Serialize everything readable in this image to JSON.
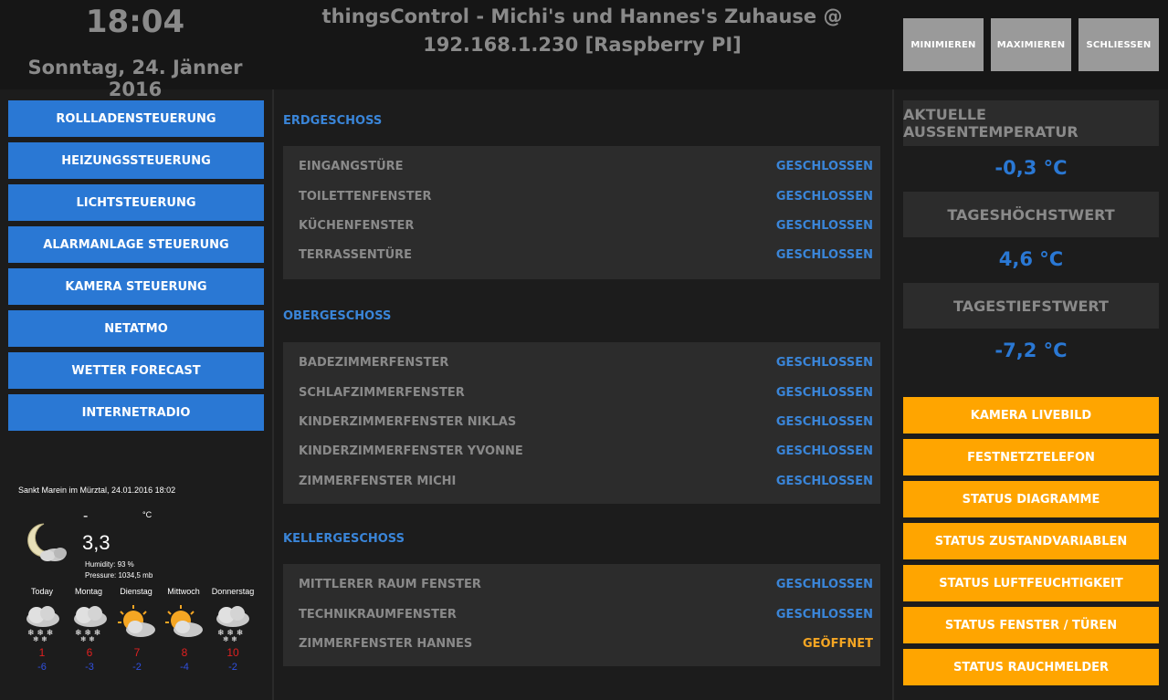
{
  "header": {
    "time": "18:04",
    "date": "Sonntag, 24. Jänner 2016",
    "title_line1": "thingsControl - Michi's und Hannes's Zuhause @",
    "title_line2": "192.168.1.230 [Raspberry PI]",
    "buttons": {
      "minimize": "MINIMIEREN",
      "maximize": "MAXIMIEREN",
      "close": "SCHLIESSEN"
    }
  },
  "nav": [
    "ROLLLADENSTEUERUNG",
    "HEIZUNGSSTEUERUNG",
    "LICHTSTEUERUNG",
    "ALARMANLAGE STEUERUNG",
    "KAMERA STEUERUNG",
    "NETATMO",
    "WETTER FORECAST",
    "INTERNETRADIO"
  ],
  "weather": {
    "location": "Sankt Marein im Mürztal, 24.01.2016 18:02",
    "unit": "°C",
    "dash": "-",
    "current_temp": "3,3",
    "humidity": "Humidity:  93 %",
    "pressure": "Pressure:  1034,5 mb",
    "current_icon": "moon-cloud-icon",
    "forecast": [
      {
        "day": "Today",
        "hi": "1",
        "lo": "-6",
        "icon": "snow-cloud-icon"
      },
      {
        "day": "Montag",
        "hi": "6",
        "lo": "-3",
        "icon": "snow-cloud-icon"
      },
      {
        "day": "Dienstag",
        "hi": "7",
        "lo": "-2",
        "icon": "sun-cloud-icon"
      },
      {
        "day": "Mittwoch",
        "hi": "8",
        "lo": "-4",
        "icon": "sun-cloud-icon"
      },
      {
        "day": "Donnerstag",
        "hi": "10",
        "lo": "-2",
        "icon": "snow-cloud-icon"
      }
    ]
  },
  "sections": {
    "erdgeschoss": {
      "title": "ERDGESCHOSS",
      "rows": [
        {
          "label": "EINGANGSTÜRE",
          "status": "GESCHLOSSEN"
        },
        {
          "label": "TOILETTENFENSTER",
          "status": "GESCHLOSSEN"
        },
        {
          "label": "KÜCHENFENSTER",
          "status": "GESCHLOSSEN"
        },
        {
          "label": "TERRASSENTÜRE",
          "status": "GESCHLOSSEN"
        }
      ]
    },
    "obergeschoss": {
      "title": "OBERGESCHOSS",
      "rows": [
        {
          "label": "BADEZIMMERFENSTER",
          "status": "GESCHLOSSEN"
        },
        {
          "label": "SCHLAFZIMMERFENSTER",
          "status": "GESCHLOSSEN"
        },
        {
          "label": "KINDERZIMMERFENSTER NIKLAS",
          "status": "GESCHLOSSEN"
        },
        {
          "label": "KINDERZIMMERFENSTER YVONNE",
          "status": "GESCHLOSSEN"
        },
        {
          "label": "ZIMMERFENSTER MICHI",
          "status": "GESCHLOSSEN"
        }
      ]
    },
    "kellergeschoss": {
      "title": "KELLERGESCHOSS",
      "rows": [
        {
          "label": "MITTLERER RAUM FENSTER",
          "status": "GESCHLOSSEN"
        },
        {
          "label": "TECHNIKRAUMFENSTER",
          "status": "GESCHLOSSEN"
        },
        {
          "label": "ZIMMERFENSTER HANNES",
          "status": "GEÖFFNET"
        }
      ]
    }
  },
  "temps": {
    "outside_label": "AKTUELLE AUSSENTEMPERATUR",
    "outside_value": "-0,3 °C",
    "max_label": "TAGESHÖCHSTWERT",
    "max_value": "4,6 °C",
    "min_label": "TAGESTIEFSTWERT",
    "min_value": "-7,2 °C"
  },
  "status_buttons": [
    "KAMERA LIVEBILD",
    "FESTNETZTELEFON",
    "STATUS DIAGRAMME",
    "STATUS ZUSTANDVARIABLEN",
    "STATUS LUFTFEUCHTIGKEIT",
    "STATUS FENSTER / TÜREN",
    "STATUS RAUCHMELDER"
  ],
  "colors": {
    "accent_blue": "#2a78d4",
    "accent_orange": "#ffa500",
    "open_status": "#f5a623"
  }
}
